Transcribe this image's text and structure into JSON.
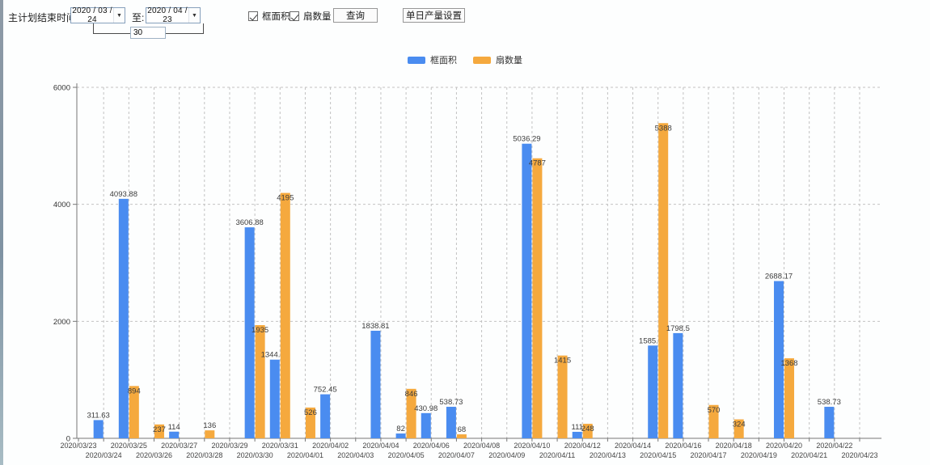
{
  "toolbar": {
    "plan_end_label": "主计划结束时间:",
    "date_from": "2020 / 03 / 24",
    "to_label": "至:",
    "date_to": "2020 / 04 / 23",
    "interval_days": "30",
    "checkbox_frame_area": "框面积",
    "checkbox_sash_count": "扇数量",
    "query_button": "查询",
    "daily_output_button": "单日产量设置",
    "dropdown_arrow": "▼"
  },
  "legend": {
    "frame_area": "框面积",
    "sash_count": "扇数量"
  },
  "colors": {
    "frame_area": "#4a8cf0",
    "sash_count": "#f5a93e",
    "grid": "#c2c2c2",
    "axis": "#777777",
    "tick_text": "#444444",
    "data_label": "#3c3c3c"
  },
  "chart_data": {
    "type": "bar",
    "title": "",
    "xlabel": "",
    "ylabel": "",
    "ylim": [
      0,
      6000
    ],
    "yticks": [
      0,
      2000,
      4000,
      6000
    ],
    "grid": "dashed",
    "legend_position": "top-center",
    "categories": [
      "2020/03/23",
      "2020/03/24",
      "2020/03/25",
      "2020/03/26",
      "2020/03/27",
      "2020/03/28",
      "2020/03/29",
      "2020/03/30",
      "2020/03/31",
      "2020/04/01",
      "2020/04/02",
      "2020/04/03",
      "2020/04/04",
      "2020/04/05",
      "2020/04/06",
      "2020/04/07",
      "2020/04/08",
      "2020/04/09",
      "2020/04/10",
      "2020/04/11",
      "2020/04/12",
      "2020/04/13",
      "2020/04/14",
      "2020/04/15",
      "2020/04/16",
      "2020/04/17",
      "2020/04/18",
      "2020/04/19",
      "2020/04/20",
      "2020/04/21",
      "2020/04/22",
      "2020/04/23"
    ],
    "series": [
      {
        "name": "框面积",
        "values": [
          0,
          311.63,
          4093.88,
          0,
          114,
          0,
          0,
          3606.88,
          1344.95,
          0,
          752.45,
          0,
          1838.81,
          82,
          430.98,
          538.73,
          0,
          0,
          5036.29,
          0,
          111,
          0,
          0,
          1585.96,
          1798.5,
          0,
          0,
          0,
          2688.17,
          0,
          538.73,
          0
        ]
      },
      {
        "name": "扇数量",
        "values": [
          0,
          0,
          894,
          237,
          0,
          136,
          0,
          1935,
          4195,
          526,
          0,
          0,
          0,
          846,
          0,
          68,
          0,
          0,
          4787,
          1415,
          248,
          0,
          0,
          5388,
          0,
          570,
          324,
          0,
          1368,
          0,
          0,
          0
        ]
      }
    ]
  }
}
